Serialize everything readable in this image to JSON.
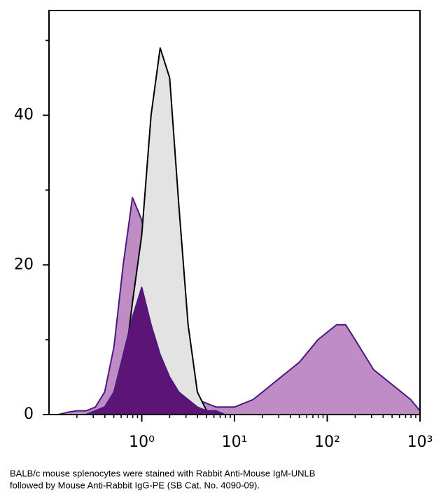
{
  "chart_data": {
    "type": "area",
    "x": [
      0.1,
      0.126,
      0.158,
      0.2,
      0.251,
      0.316,
      0.398,
      0.501,
      0.631,
      0.794,
      1,
      1.26,
      1.58,
      2,
      2.51,
      3.16,
      3.98,
      5.01,
      6.31,
      7.94,
      10,
      12.6,
      15.8,
      20,
      25.1,
      31.6,
      39.8,
      50.1,
      63.1,
      79.4,
      100,
      126,
      158,
      200,
      251,
      316,
      398,
      501,
      631,
      794,
      1000
    ],
    "series": [
      {
        "color": "#4b1a7e",
        "fill": "#c08cc6",
        "values": [
          0,
          0,
          0.3,
          0.5,
          0.5,
          1,
          3,
          9,
          20,
          29,
          26,
          18,
          15,
          10,
          6,
          4,
          2,
          1.5,
          1,
          1,
          1,
          1.5,
          2,
          3,
          4,
          5,
          6,
          7,
          8.5,
          10,
          11,
          12,
          12,
          10,
          8,
          6,
          5,
          4,
          3,
          2,
          0.5
        ]
      },
      {
        "color": "#000000",
        "fill": "#e3e3e3",
        "values": [
          0,
          0,
          0,
          0,
          0,
          0.5,
          1,
          2,
          5,
          15,
          24,
          40,
          49,
          45,
          28,
          12,
          3,
          0.5,
          0,
          0,
          0,
          0,
          0,
          0,
          0,
          0,
          0,
          0,
          0,
          0,
          0,
          0,
          0,
          0,
          0,
          0,
          0,
          0,
          0,
          0,
          0
        ]
      },
      {
        "color": "#4b1a7e",
        "fill": "#5c1477",
        "values": [
          0,
          0,
          0,
          0,
          0,
          0.5,
          1,
          3,
          8,
          13,
          17,
          12,
          8,
          5,
          3,
          2,
          1,
          0.5,
          0.5,
          0,
          0,
          0,
          0,
          0,
          0,
          0,
          0,
          0,
          0,
          0,
          0,
          0,
          0,
          0,
          0,
          0,
          0,
          0,
          0,
          0,
          0
        ]
      }
    ],
    "xlim": [
      0.1,
      1000
    ],
    "xscale": "log",
    "xticks": [
      {
        "value": 1,
        "label": "10⁰"
      },
      {
        "value": 10,
        "label": "10¹"
      },
      {
        "value": 100,
        "label": "10²"
      },
      {
        "value": 1000,
        "label": "10³"
      }
    ],
    "xminor_ticks": [
      0.2,
      0.3,
      0.4,
      0.5,
      0.6,
      0.7,
      0.8,
      0.9,
      2,
      3,
      4,
      5,
      6,
      7,
      8,
      9,
      20,
      30,
      40,
      50,
      60,
      70,
      80,
      90,
      200,
      300,
      400,
      500,
      600,
      700,
      800,
      900
    ],
    "ylim": [
      0,
      54
    ],
    "yticks": [
      0,
      20,
      40
    ],
    "yminor_ticks": [
      10,
      30,
      50
    ],
    "caption": [
      "BALB/c mouse splenocytes were stained with Rabbit Anti-Mouse IgM-UNLB",
      "followed by Mouse Anti-Rabbit IgG-PE (SB Cat. No. 4090-09)."
    ]
  }
}
